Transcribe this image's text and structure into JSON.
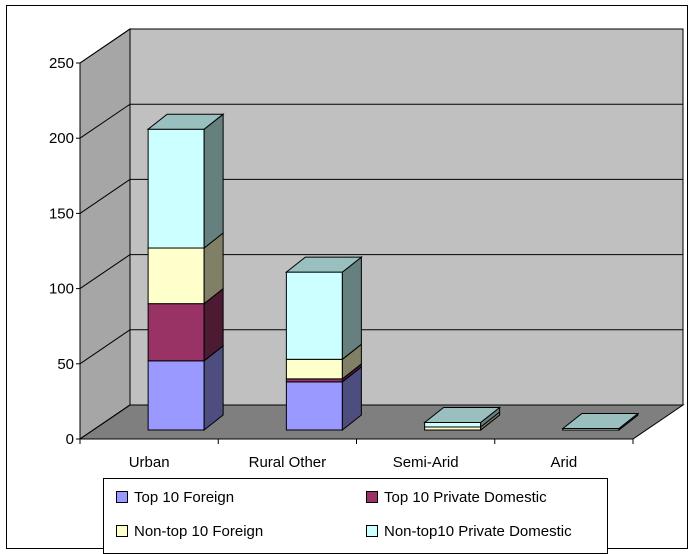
{
  "chart_data": {
    "type": "bar",
    "stacked": true,
    "three_d": true,
    "title": "",
    "xlabel": "",
    "ylabel": "",
    "categories": [
      "Urban",
      "Rural Other",
      "Semi-Arid",
      "Arid"
    ],
    "ylim": [
      0,
      250
    ],
    "yticks": [
      0,
      50,
      100,
      150,
      200,
      250
    ],
    "grid": true,
    "legend_position": "bottom",
    "series": [
      {
        "name": "Top 10 Foreign",
        "values": [
          46,
          32,
          0,
          0
        ],
        "color": "#9999ff"
      },
      {
        "name": "Top 10 Private Domestic",
        "values": [
          38,
          2,
          0,
          0
        ],
        "color": "#993366"
      },
      {
        "name": "Non-top 10 Foreign",
        "values": [
          37,
          13,
          2,
          0
        ],
        "color": "#ffffcc"
      },
      {
        "name": "Non-top10 Private Domestic",
        "values": [
          79,
          58,
          3,
          1
        ],
        "color": "#ccffff"
      }
    ]
  }
}
